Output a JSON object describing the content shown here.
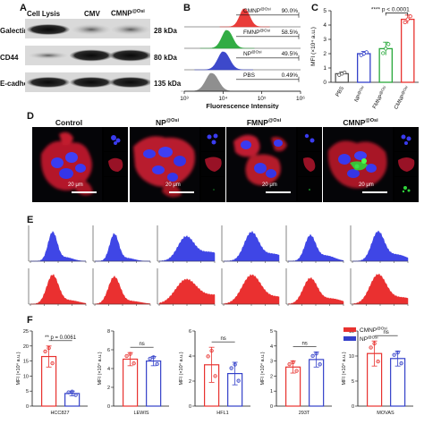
{
  "panels": {
    "a": "A",
    "b": "B",
    "c": "C",
    "d": "D",
    "e": "E",
    "f": "F"
  },
  "panel_a": {
    "columns": [
      "Cell Lysis",
      "CMV",
      "CMNP@Osi"
    ],
    "col_base": "CMNP",
    "col_sup": "@Osi",
    "rows": [
      {
        "label": "Galectin-3",
        "kda": "28 kDa"
      },
      {
        "label": "CD44",
        "kda": "80 kDa"
      },
      {
        "label": "E-cadherin",
        "kda": "135 kDa"
      }
    ]
  },
  "panel_b": {
    "xlabel": "Fluorescence Intensity",
    "ticks": [
      "10³",
      "10⁴",
      "10⁵",
      "10⁶"
    ],
    "tracks": [
      {
        "base": "CMNP",
        "sup": "@Osi",
        "pct": "90.0%",
        "color": "#e8322f"
      },
      {
        "base": "FMNP",
        "sup": "@Osi",
        "pct": "58.5%",
        "color": "#28a83a"
      },
      {
        "base": "NP",
        "sup": "@Osi",
        "pct": "49.5%",
        "color": "#3340c9"
      },
      {
        "base": "PBS",
        "sup": "",
        "pct": "0.49%",
        "color": "#8a8a8a"
      }
    ]
  },
  "panel_c": {
    "ylabel": "MFI (×10⁴ a.u.)",
    "sig": "**** p < 0.0001",
    "chart_data": {
      "type": "bar",
      "categories": [
        "PBS",
        "NP@Osi",
        "FMNP@Osi",
        "CMNP@Osi"
      ],
      "values": [
        0.6,
        2.0,
        2.35,
        4.4
      ],
      "errors": [
        0.12,
        0.15,
        0.45,
        0.3
      ],
      "ylim": [
        0,
        5
      ],
      "yticks": [
        0,
        1,
        2,
        3,
        4,
        5
      ],
      "colors": [
        "#555555",
        "#3340c9",
        "#28a83a",
        "#e8322f"
      ]
    }
  },
  "panel_d": {
    "titles": [
      {
        "base": "Control",
        "sup": ""
      },
      {
        "base": "NP",
        "sup": "@Osi"
      },
      {
        "base": "FMNP",
        "sup": "@Osi"
      },
      {
        "base": "CMNP",
        "sup": "@Osi"
      }
    ],
    "scalebar": "20 μm"
  },
  "panel_e": {
    "top_color": "#3f46e6",
    "bottom_color": "#ea3030"
  },
  "panel_f": {
    "legend": [
      {
        "base": "CMNP",
        "sup": "@Osi",
        "color": "#e8322f"
      },
      {
        "base": "NP",
        "sup": "@Osi",
        "color": "#3340c9"
      }
    ],
    "ylabel": "MFI (×10⁴ a.u.)",
    "chart_data": [
      {
        "type": "bar",
        "category": "HCC827",
        "sig": "** p = 0.0061",
        "ylim": [
          0,
          25
        ],
        "yticks": [
          0,
          5,
          10,
          15,
          20,
          25
        ],
        "values": [
          16.5,
          4.2
        ],
        "errors": [
          3.5,
          0.8
        ]
      },
      {
        "type": "bar",
        "category": "LEWIS",
        "sig": "ns",
        "ylim": [
          0,
          8
        ],
        "yticks": [
          0,
          2,
          4,
          6,
          8
        ],
        "values": [
          5.0,
          4.8
        ],
        "errors": [
          0.7,
          0.5
        ]
      },
      {
        "type": "bar",
        "category": "HFL1",
        "sig": "ns",
        "ylim": [
          0,
          6
        ],
        "yticks": [
          0,
          2,
          4,
          6
        ],
        "values": [
          3.3,
          2.6
        ],
        "errors": [
          1.4,
          0.9
        ]
      },
      {
        "type": "bar",
        "category": "293T",
        "sig": "ns",
        "ylim": [
          0,
          5
        ],
        "yticks": [
          0,
          1,
          2,
          3,
          4,
          5
        ],
        "values": [
          2.6,
          3.1
        ],
        "errors": [
          0.4,
          0.5
        ]
      },
      {
        "type": "bar",
        "category": "MOVAS",
        "sig": "ns",
        "ylim": [
          0,
          15
        ],
        "yticks": [
          0,
          5,
          10,
          15
        ],
        "values": [
          10.5,
          9.5
        ],
        "errors": [
          2.5,
          1.5
        ]
      }
    ]
  }
}
